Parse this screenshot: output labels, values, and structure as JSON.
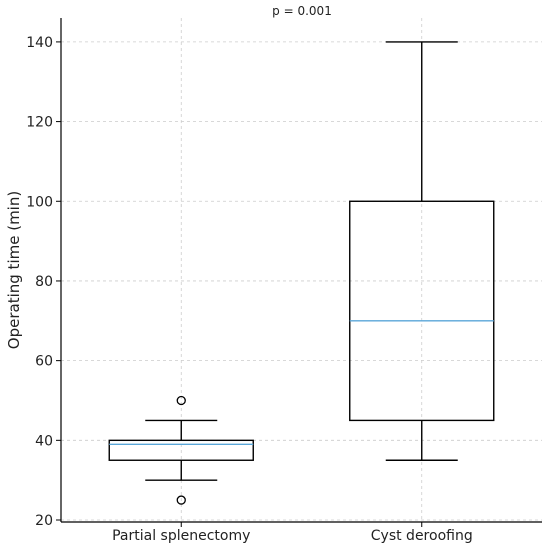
{
  "chart_data": {
    "type": "box",
    "title": "",
    "annotation": "p = 0.001",
    "xlabel": "",
    "ylabel": "Operating time (min)",
    "ylim": [
      19.5,
      146
    ],
    "yticks": [
      20,
      40,
      60,
      80,
      100,
      120,
      140
    ],
    "grid": true,
    "colors": {
      "box": "#000000",
      "median": "#5aa6d8",
      "grid": "#cccccc"
    },
    "categories": [
      "Partial splenectomy",
      "Cyst deroofing"
    ],
    "boxes": [
      {
        "label": "Partial splenectomy",
        "whisker_low": 30,
        "q1": 35,
        "median": 39,
        "q3": 40,
        "whisker_high": 45,
        "outliers": [
          50,
          25
        ]
      },
      {
        "label": "Cyst deroofing",
        "whisker_low": 35,
        "q1": 45,
        "median": 70,
        "q3": 100,
        "whisker_high": 140,
        "outliers": []
      }
    ]
  }
}
